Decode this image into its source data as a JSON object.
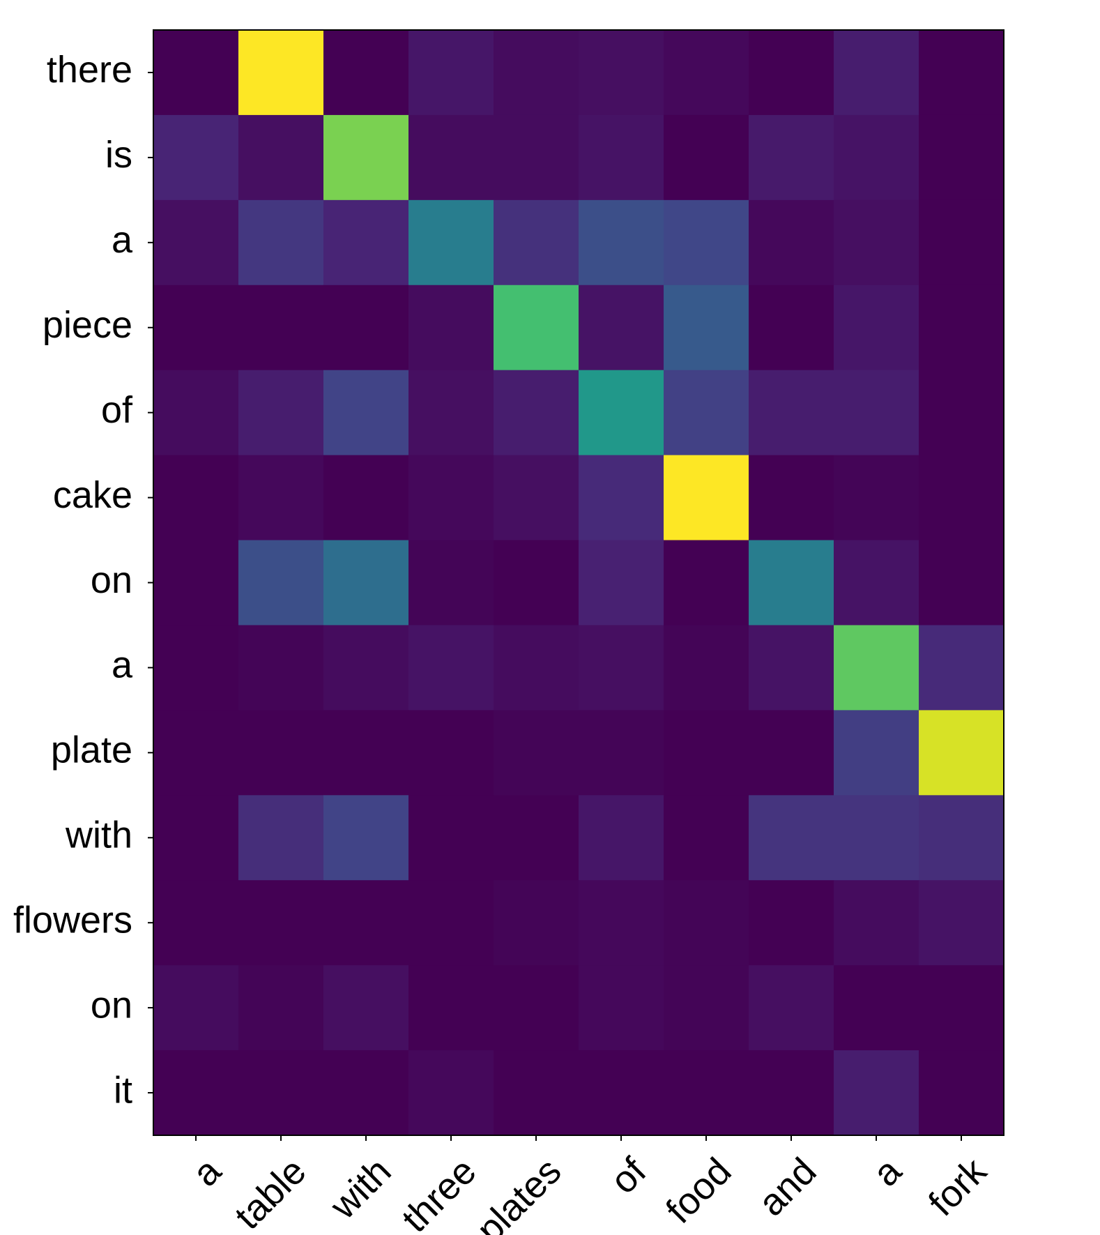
{
  "chart_data": {
    "type": "heatmap",
    "colormap": "viridis",
    "x_labels": [
      "a",
      "table",
      "with",
      "three",
      "plates",
      "of",
      "food",
      "and",
      "a",
      "fork"
    ],
    "y_labels": [
      "there",
      "is",
      "a",
      "piece",
      "of",
      "cake",
      "on",
      "a",
      "plate",
      "with",
      "flowers",
      "on",
      "it"
    ],
    "value_range": [
      0,
      1
    ],
    "values": [
      [
        0.0,
        1.0,
        0.0,
        0.06,
        0.03,
        0.04,
        0.02,
        0.0,
        0.08,
        0.0
      ],
      [
        0.1,
        0.04,
        0.8,
        0.03,
        0.03,
        0.05,
        0.0,
        0.07,
        0.05,
        0.0
      ],
      [
        0.04,
        0.16,
        0.1,
        0.42,
        0.14,
        0.24,
        0.21,
        0.02,
        0.04,
        0.0
      ],
      [
        0.0,
        0.0,
        0.0,
        0.03,
        0.7,
        0.05,
        0.28,
        0.0,
        0.06,
        0.0
      ],
      [
        0.03,
        0.08,
        0.2,
        0.04,
        0.08,
        0.53,
        0.19,
        0.08,
        0.08,
        0.0
      ],
      [
        0.0,
        0.02,
        0.0,
        0.02,
        0.04,
        0.12,
        1.0,
        0.0,
        0.01,
        0.0
      ],
      [
        0.0,
        0.24,
        0.36,
        0.01,
        0.0,
        0.09,
        0.0,
        0.42,
        0.05,
        0.0
      ],
      [
        0.0,
        0.01,
        0.03,
        0.05,
        0.03,
        0.04,
        0.01,
        0.05,
        0.75,
        0.12
      ],
      [
        0.0,
        0.0,
        0.0,
        0.0,
        0.01,
        0.01,
        0.0,
        0.0,
        0.18,
        0.94
      ],
      [
        0.0,
        0.13,
        0.2,
        0.0,
        0.0,
        0.06,
        0.0,
        0.15,
        0.15,
        0.13
      ],
      [
        0.0,
        0.0,
        0.0,
        0.0,
        0.01,
        0.02,
        0.01,
        0.0,
        0.03,
        0.05
      ],
      [
        0.03,
        0.01,
        0.04,
        0.0,
        0.0,
        0.02,
        0.01,
        0.04,
        0.0,
        0.0
      ],
      [
        0.0,
        0.0,
        0.0,
        0.02,
        0.0,
        0.0,
        0.0,
        0.0,
        0.08,
        0.0
      ]
    ],
    "title": "",
    "xlabel": "",
    "ylabel": "",
    "grid": false,
    "legend": "none"
  }
}
